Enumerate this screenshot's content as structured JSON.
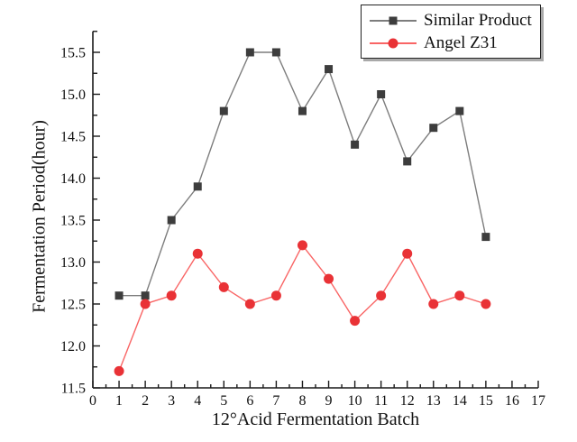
{
  "chart_data": {
    "type": "line",
    "title": "",
    "xlabel": "12°Acid Fermentation Batch",
    "ylabel": "Fermentation Period(hour)",
    "x": [
      1,
      2,
      3,
      4,
      5,
      6,
      7,
      8,
      9,
      10,
      11,
      12,
      13,
      14,
      15
    ],
    "series": [
      {
        "name": "Similar Product",
        "marker": "square",
        "marker_color": "#3d3d3d",
        "line_color": "#7d7d7d",
        "values": [
          12.6,
          12.6,
          13.5,
          13.9,
          14.8,
          15.5,
          15.5,
          14.8,
          15.3,
          14.4,
          15.0,
          14.2,
          14.6,
          14.8,
          13.3
        ]
      },
      {
        "name": "Angel Z31",
        "marker": "circle",
        "marker_color": "#e93236",
        "line_color": "#f96565",
        "values": [
          11.7,
          12.5,
          12.6,
          13.1,
          12.7,
          12.5,
          12.6,
          13.2,
          12.8,
          12.3,
          12.6,
          13.1,
          12.5,
          12.6,
          12.5
        ]
      }
    ],
    "xlim": [
      0,
      17
    ],
    "ylim": [
      11.5,
      15.75
    ],
    "x_major_ticks": [
      0,
      1,
      2,
      3,
      4,
      5,
      6,
      7,
      8,
      9,
      10,
      11,
      12,
      13,
      14,
      15,
      16,
      17
    ],
    "y_major_ticks": [
      11.5,
      12.0,
      12.5,
      13.0,
      13.5,
      14.0,
      14.5,
      15.0,
      15.5
    ],
    "x_minor_step": 0.5,
    "y_minor_step": 0.25,
    "grid": false,
    "legend_position": "top-right",
    "axis_color": "#1a1a1a",
    "tick_label_color": "#111111"
  }
}
